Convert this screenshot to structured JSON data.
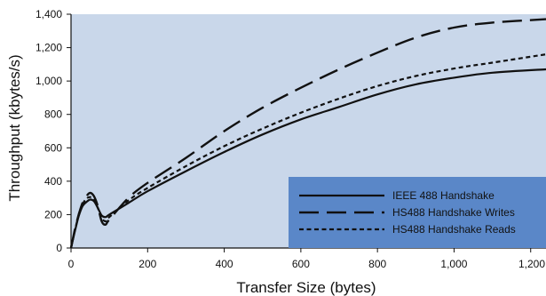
{
  "chart_data": {
    "type": "line",
    "title": "",
    "xlabel": "Transfer Size (bytes)",
    "ylabel": "Throughput (kbytes/s)",
    "xlim": [
      0,
      1240
    ],
    "ylim": [
      0,
      1400
    ],
    "x_ticks": [
      0,
      200,
      400,
      600,
      800,
      1000,
      1200
    ],
    "x_tick_labels": [
      "0",
      "200",
      "400",
      "600",
      "800",
      "1,000",
      "1,200"
    ],
    "y_ticks": [
      0,
      200,
      400,
      600,
      800,
      1000,
      1200,
      1400
    ],
    "y_tick_labels": [
      "0",
      "200",
      "400",
      "600",
      "800",
      "1,000",
      "1,200",
      "1,400"
    ],
    "grid": false,
    "legend_position": "bottom-right",
    "colors": {
      "plot_background": "#c9d7ea",
      "legend_background": "#5a87c8",
      "line": "#111111"
    },
    "series": [
      {
        "name": "IEEE 488 Handshake",
        "style": "solid",
        "x": [
          0,
          10,
          20,
          30,
          40,
          50,
          60,
          70,
          80,
          90,
          100,
          150,
          200,
          300,
          400,
          500,
          600,
          700,
          800,
          900,
          1000,
          1100,
          1240
        ],
        "y": [
          0,
          100,
          190,
          250,
          275,
          290,
          280,
          240,
          195,
          185,
          200,
          270,
          340,
          460,
          575,
          680,
          770,
          845,
          920,
          980,
          1020,
          1050,
          1070
        ]
      },
      {
        "name": "HS488 Handshake Writes",
        "style": "long-dash",
        "x": [
          0,
          10,
          20,
          30,
          40,
          50,
          60,
          70,
          80,
          90,
          100,
          150,
          200,
          300,
          400,
          500,
          600,
          700,
          800,
          900,
          1000,
          1100,
          1240
        ],
        "y": [
          0,
          110,
          200,
          270,
          310,
          330,
          310,
          250,
          160,
          140,
          170,
          300,
          390,
          540,
          700,
          840,
          960,
          1070,
          1170,
          1260,
          1320,
          1350,
          1370
        ]
      },
      {
        "name": "HS488 Handshake Reads",
        "style": "short-dash",
        "x": [
          0,
          10,
          20,
          30,
          40,
          50,
          60,
          70,
          80,
          90,
          100,
          150,
          200,
          300,
          400,
          500,
          600,
          700,
          800,
          900,
          1000,
          1100,
          1240
        ],
        "y": [
          0,
          105,
          195,
          260,
          295,
          305,
          290,
          240,
          180,
          160,
          185,
          285,
          360,
          490,
          610,
          715,
          810,
          895,
          970,
          1030,
          1075,
          1110,
          1160
        ]
      }
    ]
  }
}
